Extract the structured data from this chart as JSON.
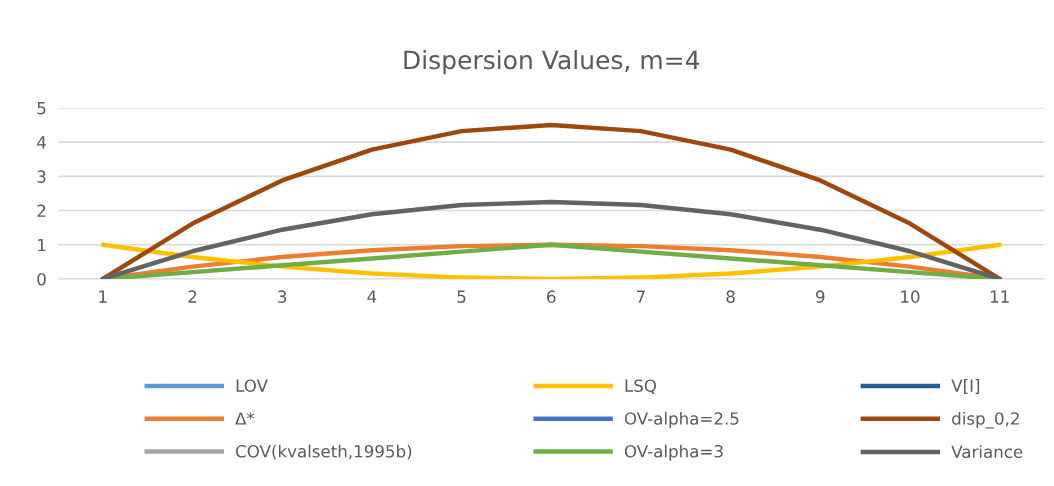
{
  "chart_data": {
    "type": "line",
    "title": "Dispersion Values, m=4",
    "categories": [
      "1",
      "2",
      "3",
      "4",
      "5",
      "6",
      "7",
      "8",
      "9",
      "10",
      "11"
    ],
    "series": [
      {
        "name": "LOV",
        "color": "#5b9bd5",
        "values": [
          null,
          null,
          null,
          null,
          null,
          null,
          null,
          null,
          null,
          null,
          null
        ]
      },
      {
        "name": "Δ*",
        "color": "#ed7d31",
        "values": [
          0,
          0.36,
          0.64,
          0.84,
          0.96,
          1,
          0.96,
          0.84,
          0.64,
          0.36,
          0
        ]
      },
      {
        "name": "COV(kvalseth,1995b)",
        "color": "#a5a5a5",
        "values": [
          null,
          null,
          null,
          null,
          null,
          null,
          null,
          null,
          null,
          null,
          null
        ]
      },
      {
        "name": "LSQ",
        "color": "#ffc000",
        "values": [
          1,
          0.64,
          0.36,
          0.16,
          0.04,
          0,
          0.04,
          0.16,
          0.36,
          0.64,
          1
        ]
      },
      {
        "name": "OV-alpha=2.5",
        "color": "#4472c4",
        "values": [
          null,
          null,
          null,
          null,
          null,
          null,
          null,
          null,
          null,
          null,
          null
        ]
      },
      {
        "name": "OV-alpha=3",
        "color": "#70ad47",
        "values": [
          0,
          0.2,
          0.4,
          0.6,
          0.8,
          1,
          0.8,
          0.6,
          0.4,
          0.2,
          0
        ]
      },
      {
        "name": "V[I]",
        "color": "#255e91",
        "values": [
          null,
          null,
          null,
          null,
          null,
          null,
          null,
          null,
          null,
          null,
          null
        ]
      },
      {
        "name": "disp_0,2",
        "color": "#9e480e",
        "values": [
          0,
          1.62,
          2.88,
          3.78,
          4.32,
          4.5,
          4.32,
          3.78,
          2.88,
          1.62,
          0
        ]
      },
      {
        "name": "Variance",
        "color": "#636363",
        "values": [
          0,
          0.81,
          1.44,
          1.89,
          2.16,
          2.25,
          2.16,
          1.89,
          1.44,
          0.81,
          0
        ]
      }
    ],
    "ylim": [
      0,
      5
    ],
    "yticks": [
      0,
      1,
      2,
      3,
      4,
      5
    ],
    "grid": "y",
    "legend": "bottom",
    "marker": "none",
    "line_style": "solid"
  }
}
